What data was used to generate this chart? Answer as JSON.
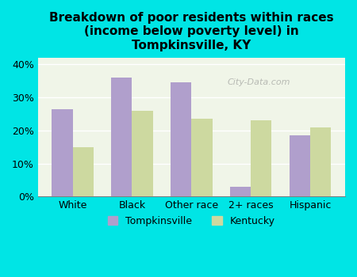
{
  "title": "Breakdown of poor residents within races\n(income below poverty level) in\nTompkinsville, KY",
  "categories": [
    "White",
    "Black",
    "Other race",
    "2+ races",
    "Hispanic"
  ],
  "tompkinsville": [
    26.5,
    36.0,
    34.5,
    3.0,
    18.5
  ],
  "kentucky": [
    15.0,
    26.0,
    23.5,
    23.0,
    21.0
  ],
  "tompkinsville_color": "#b09fcc",
  "kentucky_color": "#cdd9a0",
  "background_color": "#00e5e5",
  "plot_bg_color": "#f0f5e8",
  "ylim": [
    0,
    42
  ],
  "yticks": [
    0,
    10,
    20,
    30,
    40
  ],
  "ytick_labels": [
    "0%",
    "10%",
    "20%",
    "30%",
    "40%"
  ],
  "legend_tompkinsville": "Tompkinsville",
  "legend_kentucky": "Kentucky",
  "bar_width": 0.35,
  "watermark": "City-Data.com"
}
